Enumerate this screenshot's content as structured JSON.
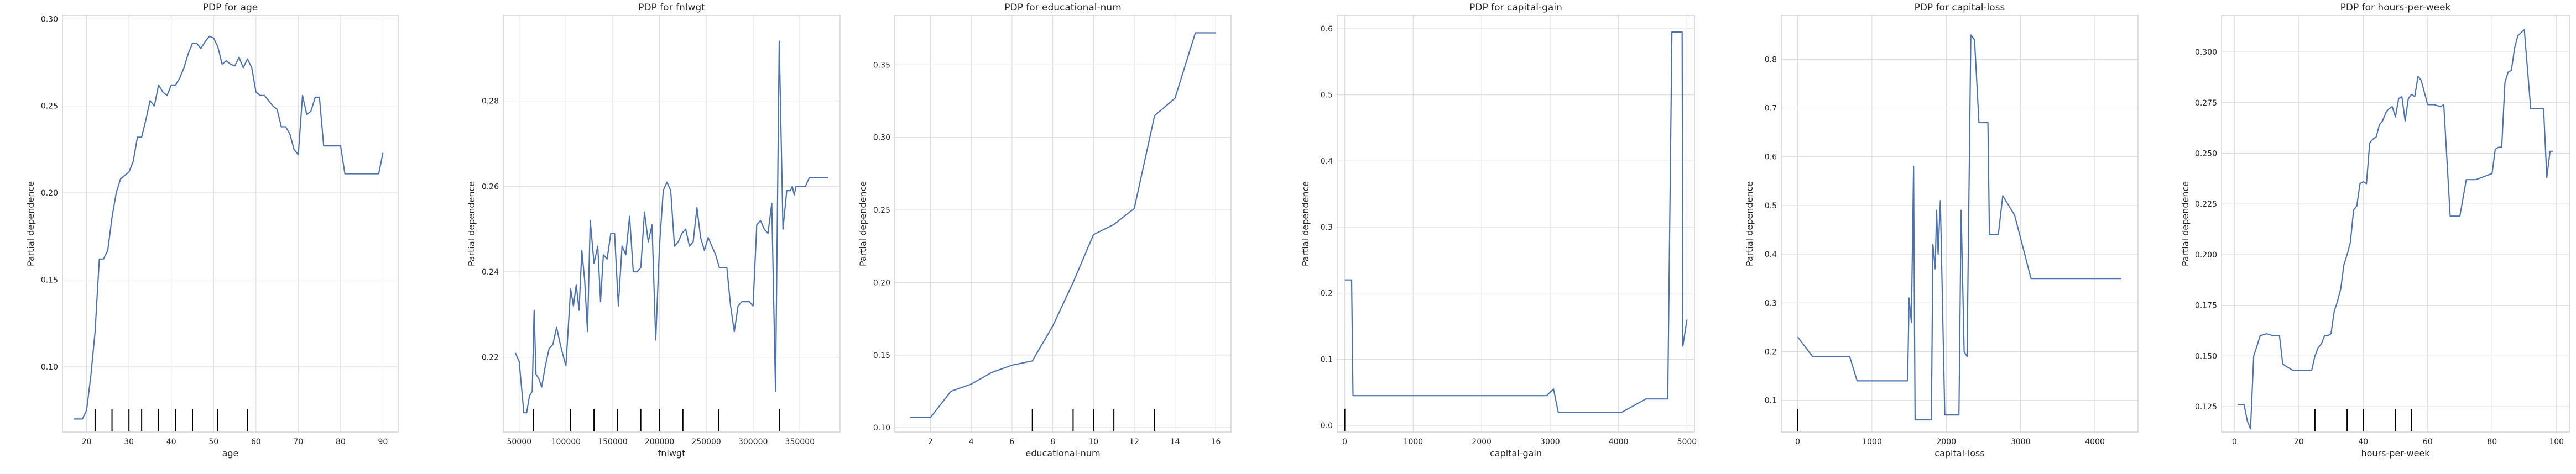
{
  "chart_data": [
    {
      "type": "line",
      "title": "PDP for age",
      "xlabel": "age",
      "ylabel": "Partial dependence",
      "xlim": [
        14.3,
        93.6
      ],
      "ylim": [
        0.0625,
        0.302
      ],
      "xticks": [
        20,
        30,
        40,
        50,
        60,
        70,
        80,
        90
      ],
      "yticks": [
        0.1,
        0.15,
        0.2,
        0.25,
        0.3
      ],
      "ytick_labels": [
        "0.10",
        "0.15",
        "0.20",
        "0.25",
        "0.30"
      ],
      "grid": true,
      "rug": [
        22,
        26,
        30,
        33,
        37,
        41,
        45,
        51,
        58
      ],
      "x": [
        17,
        19,
        20,
        21,
        22,
        23,
        24,
        25,
        26,
        27,
        28,
        29,
        30,
        31,
        32,
        33,
        34,
        35,
        36,
        37,
        38,
        39,
        40,
        41,
        42,
        43,
        44,
        45,
        46,
        47,
        48,
        49,
        50,
        51,
        52,
        53,
        54,
        55,
        56,
        57,
        58,
        59,
        60,
        61,
        62,
        63,
        64,
        65,
        66,
        67,
        68,
        69,
        70,
        71,
        72,
        73,
        74,
        75,
        76,
        77,
        78,
        79,
        80,
        81,
        85,
        88,
        89,
        90
      ],
      "y": [
        0.07,
        0.07,
        0.075,
        0.095,
        0.12,
        0.162,
        0.162,
        0.167,
        0.186,
        0.2,
        0.208,
        0.21,
        0.212,
        0.218,
        0.232,
        0.232,
        0.242,
        0.253,
        0.25,
        0.262,
        0.258,
        0.256,
        0.262,
        0.262,
        0.266,
        0.272,
        0.28,
        0.286,
        0.286,
        0.283,
        0.287,
        0.29,
        0.289,
        0.284,
        0.274,
        0.276,
        0.274,
        0.273,
        0.278,
        0.272,
        0.277,
        0.272,
        0.258,
        0.256,
        0.256,
        0.253,
        0.25,
        0.248,
        0.238,
        0.238,
        0.234,
        0.225,
        0.222,
        0.256,
        0.245,
        0.247,
        0.255,
        0.255,
        0.227,
        0.227,
        0.227,
        0.227,
        0.227,
        0.211,
        0.211,
        0.211,
        0.211,
        0.223
      ]
    },
    {
      "type": "line",
      "title": "PDP for fnlwgt",
      "xlabel": "fnlwgt",
      "ylabel": "Partial dependence",
      "xlim": [
        33000,
        393000
      ],
      "ylim": [
        0.2025,
        0.3
      ],
      "xticks": [
        50000,
        100000,
        150000,
        200000,
        250000,
        300000,
        350000
      ],
      "yticks": [
        0.22,
        0.24,
        0.26,
        0.28
      ],
      "ytick_labels": [
        "0.22",
        "0.24",
        "0.26",
        "0.28"
      ],
      "grid": true,
      "rug": [
        65000,
        105000,
        130000,
        155000,
        180000,
        200000,
        225000,
        263000,
        328000
      ],
      "x": [
        46000,
        50000,
        55000,
        58000,
        61000,
        64000,
        66000,
        68000,
        71000,
        74000,
        78000,
        82000,
        86000,
        90000,
        95000,
        100000,
        105000,
        108000,
        111000,
        114000,
        117000,
        120000,
        123000,
        126000,
        130000,
        134000,
        137000,
        140000,
        144000,
        148000,
        152000,
        156000,
        160000,
        164000,
        168000,
        172000,
        176000,
        180000,
        184000,
        188000,
        192000,
        196000,
        200000,
        204000,
        208000,
        212000,
        216000,
        220000,
        224000,
        228000,
        232000,
        236000,
        240000,
        244000,
        248000,
        252000,
        256000,
        260000,
        264000,
        268000,
        272000,
        276000,
        280000,
        284000,
        288000,
        292000,
        296000,
        300000,
        304000,
        308000,
        312000,
        316000,
        320000,
        324000,
        328000,
        332000,
        336000,
        340000,
        342000,
        344000,
        346000,
        348000,
        352000,
        356000,
        360000,
        365000,
        370000,
        375000,
        380000
      ],
      "y": [
        0.221,
        0.219,
        0.207,
        0.207,
        0.211,
        0.212,
        0.231,
        0.216,
        0.215,
        0.213,
        0.218,
        0.222,
        0.223,
        0.227,
        0.222,
        0.218,
        0.236,
        0.232,
        0.237,
        0.231,
        0.245,
        0.238,
        0.226,
        0.252,
        0.242,
        0.246,
        0.233,
        0.244,
        0.243,
        0.249,
        0.249,
        0.232,
        0.246,
        0.244,
        0.253,
        0.24,
        0.24,
        0.241,
        0.254,
        0.247,
        0.251,
        0.224,
        0.246,
        0.259,
        0.261,
        0.259,
        0.246,
        0.247,
        0.249,
        0.25,
        0.246,
        0.247,
        0.255,
        0.248,
        0.245,
        0.248,
        0.246,
        0.244,
        0.241,
        0.241,
        0.241,
        0.232,
        0.226,
        0.232,
        0.233,
        0.233,
        0.233,
        0.232,
        0.251,
        0.252,
        0.25,
        0.249,
        0.256,
        0.212,
        0.294,
        0.25,
        0.259,
        0.259,
        0.26,
        0.258,
        0.26,
        0.26,
        0.26,
        0.26,
        0.262,
        0.262,
        0.262,
        0.262,
        0.262
      ]
    },
    {
      "type": "line",
      "title": "PDP for educational-num",
      "xlabel": "educational-num",
      "ylabel": "Partial dependence",
      "xlim": [
        0.25,
        16.75
      ],
      "ylim": [
        0.097,
        0.384
      ],
      "xticks": [
        2,
        4,
        6,
        8,
        10,
        12,
        14,
        16
      ],
      "yticks": [
        0.1,
        0.15,
        0.2,
        0.25,
        0.3,
        0.35
      ],
      "ytick_labels": [
        "0.10",
        "0.15",
        "0.20",
        "0.25",
        "0.30",
        "0.35"
      ],
      "grid": true,
      "rug": [
        7,
        9,
        10,
        11,
        13
      ],
      "x": [
        1,
        2,
        3,
        4,
        5,
        6,
        7,
        8,
        9,
        10,
        11,
        12,
        13,
        14,
        15,
        16
      ],
      "y": [
        0.107,
        0.107,
        0.125,
        0.13,
        0.138,
        0.143,
        0.146,
        0.17,
        0.2,
        0.233,
        0.24,
        0.251,
        0.315,
        0.327,
        0.372,
        0.372
      ]
    },
    {
      "type": "line",
      "title": "PDP for capital-gain",
      "xlabel": "capital-gain",
      "ylabel": "Partial dependence",
      "xlim": [
        -110,
        5110
      ],
      "ylim": [
        -0.01,
        0.62
      ],
      "xticks": [
        0,
        1000,
        2000,
        3000,
        4000,
        5000
      ],
      "yticks": [
        0.0,
        0.1,
        0.2,
        0.3,
        0.4,
        0.5,
        0.6
      ],
      "ytick_labels": [
        "0.0",
        "0.1",
        "0.2",
        "0.3",
        "0.4",
        "0.5",
        "0.6"
      ],
      "grid": true,
      "rug": [
        0
      ],
      "x": [
        0,
        100,
        120,
        2950,
        3050,
        3120,
        4050,
        4400,
        4720,
        4780,
        4930,
        4940,
        5000
      ],
      "y": [
        0.22,
        0.22,
        0.045,
        0.045,
        0.055,
        0.02,
        0.02,
        0.04,
        0.04,
        0.595,
        0.595,
        0.12,
        0.16
      ]
    },
    {
      "type": "line",
      "title": "PDP for capital-loss",
      "xlabel": "capital-loss",
      "ylabel": "Partial dependence",
      "xlim": [
        -220,
        4580
      ],
      "ylim": [
        0.035,
        0.89
      ],
      "xticks": [
        0,
        1000,
        2000,
        3000,
        4000
      ],
      "yticks": [
        0.1,
        0.2,
        0.3,
        0.4,
        0.5,
        0.6,
        0.7,
        0.8
      ],
      "ytick_labels": [
        "0.1",
        "0.2",
        "0.3",
        "0.4",
        "0.5",
        "0.6",
        "0.7",
        "0.8"
      ],
      "grid": true,
      "rug": [
        0
      ],
      "x": [
        0,
        200,
        300,
        700,
        800,
        1480,
        1500,
        1530,
        1560,
        1580,
        1600,
        1800,
        1820,
        1850,
        1870,
        1890,
        1920,
        1980,
        2000,
        2170,
        2200,
        2240,
        2280,
        2330,
        2380,
        2440,
        2460,
        2560,
        2580,
        2700,
        2760,
        2920,
        3140,
        3500,
        4356
      ],
      "y": [
        0.23,
        0.19,
        0.19,
        0.19,
        0.14,
        0.14,
        0.31,
        0.26,
        0.58,
        0.06,
        0.06,
        0.06,
        0.42,
        0.37,
        0.49,
        0.4,
        0.51,
        0.07,
        0.07,
        0.07,
        0.49,
        0.2,
        0.19,
        0.85,
        0.84,
        0.67,
        0.67,
        0.67,
        0.44,
        0.44,
        0.52,
        0.48,
        0.35,
        0.35,
        0.35
      ]
    },
    {
      "type": "line",
      "title": "PDP for hours-per-week",
      "xlabel": "hours-per-week",
      "ylabel": "Partial dependence",
      "xlim": [
        -4,
        104
      ],
      "ylim": [
        0.1125,
        0.318
      ],
      "xticks": [
        0,
        20,
        40,
        60,
        80,
        100
      ],
      "yticks": [
        0.125,
        0.15,
        0.175,
        0.2,
        0.225,
        0.25,
        0.275,
        0.3
      ],
      "ytick_labels": [
        "0.125",
        "0.150",
        "0.175",
        "0.200",
        "0.225",
        "0.250",
        "0.275",
        "0.300"
      ],
      "grid": true,
      "rug": [
        25,
        35,
        40,
        50,
        55
      ],
      "x": [
        1,
        3,
        4,
        5,
        6,
        7,
        8,
        10,
        12,
        13,
        14,
        15,
        18,
        20,
        22,
        24,
        25,
        26,
        27,
        28,
        29,
        30,
        31,
        32,
        33,
        34,
        35,
        36,
        37,
        38,
        39,
        40,
        41,
        42,
        43,
        44,
        45,
        46,
        47,
        48,
        49,
        50,
        51,
        52,
        53,
        54,
        55,
        56,
        57,
        58,
        60,
        62,
        64,
        65,
        67,
        68,
        70,
        72,
        75,
        80,
        81,
        82,
        83,
        84,
        85,
        86,
        87,
        88,
        90,
        92,
        95,
        96,
        97,
        98,
        99
      ],
      "y": [
        0.126,
        0.126,
        0.118,
        0.114,
        0.15,
        0.155,
        0.16,
        0.161,
        0.16,
        0.16,
        0.16,
        0.146,
        0.143,
        0.143,
        0.143,
        0.143,
        0.15,
        0.154,
        0.156,
        0.16,
        0.16,
        0.161,
        0.172,
        0.177,
        0.183,
        0.195,
        0.2,
        0.206,
        0.222,
        0.224,
        0.235,
        0.236,
        0.235,
        0.255,
        0.257,
        0.258,
        0.264,
        0.266,
        0.27,
        0.272,
        0.273,
        0.268,
        0.277,
        0.278,
        0.266,
        0.277,
        0.279,
        0.278,
        0.288,
        0.286,
        0.274,
        0.274,
        0.273,
        0.274,
        0.219,
        0.219,
        0.219,
        0.237,
        0.237,
        0.24,
        0.252,
        0.253,
        0.253,
        0.285,
        0.29,
        0.291,
        0.302,
        0.308,
        0.311,
        0.272,
        0.272,
        0.272,
        0.238,
        0.251,
        0.251
      ]
    }
  ]
}
